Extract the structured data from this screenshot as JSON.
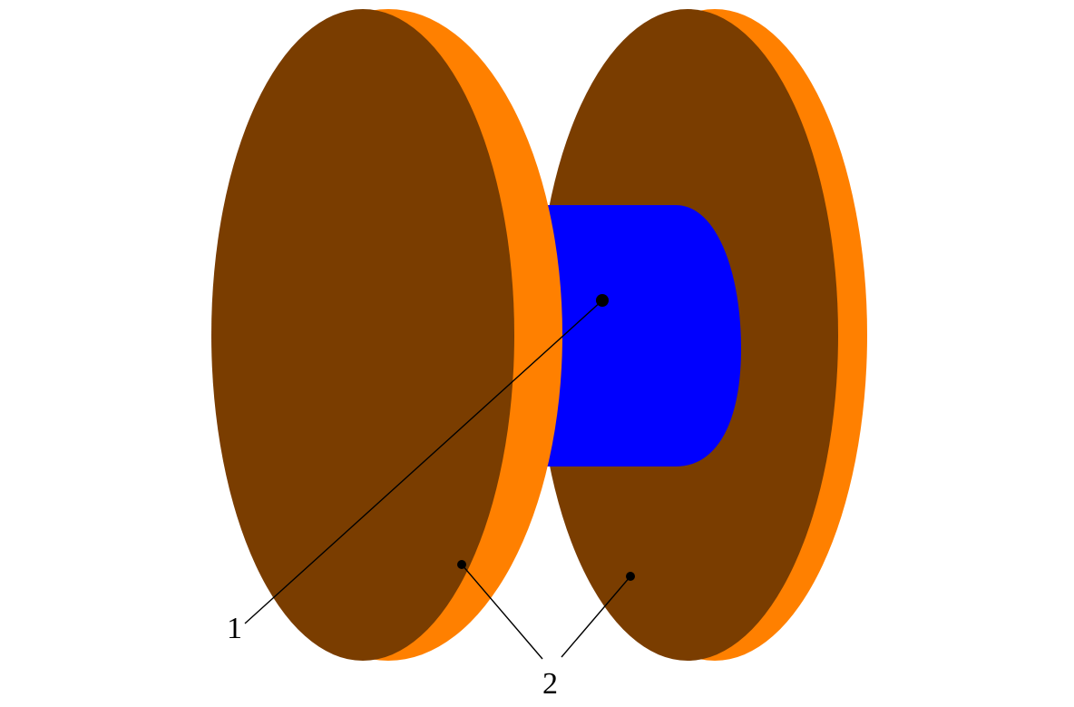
{
  "colors": {
    "disk_face": "#7A3D00",
    "disk_rim": "#FF8000",
    "core": "#0000FF",
    "lines": "#000000",
    "background": "#FFFFFF"
  },
  "labels": {
    "core_callout": "1",
    "disk_callout": "2"
  }
}
